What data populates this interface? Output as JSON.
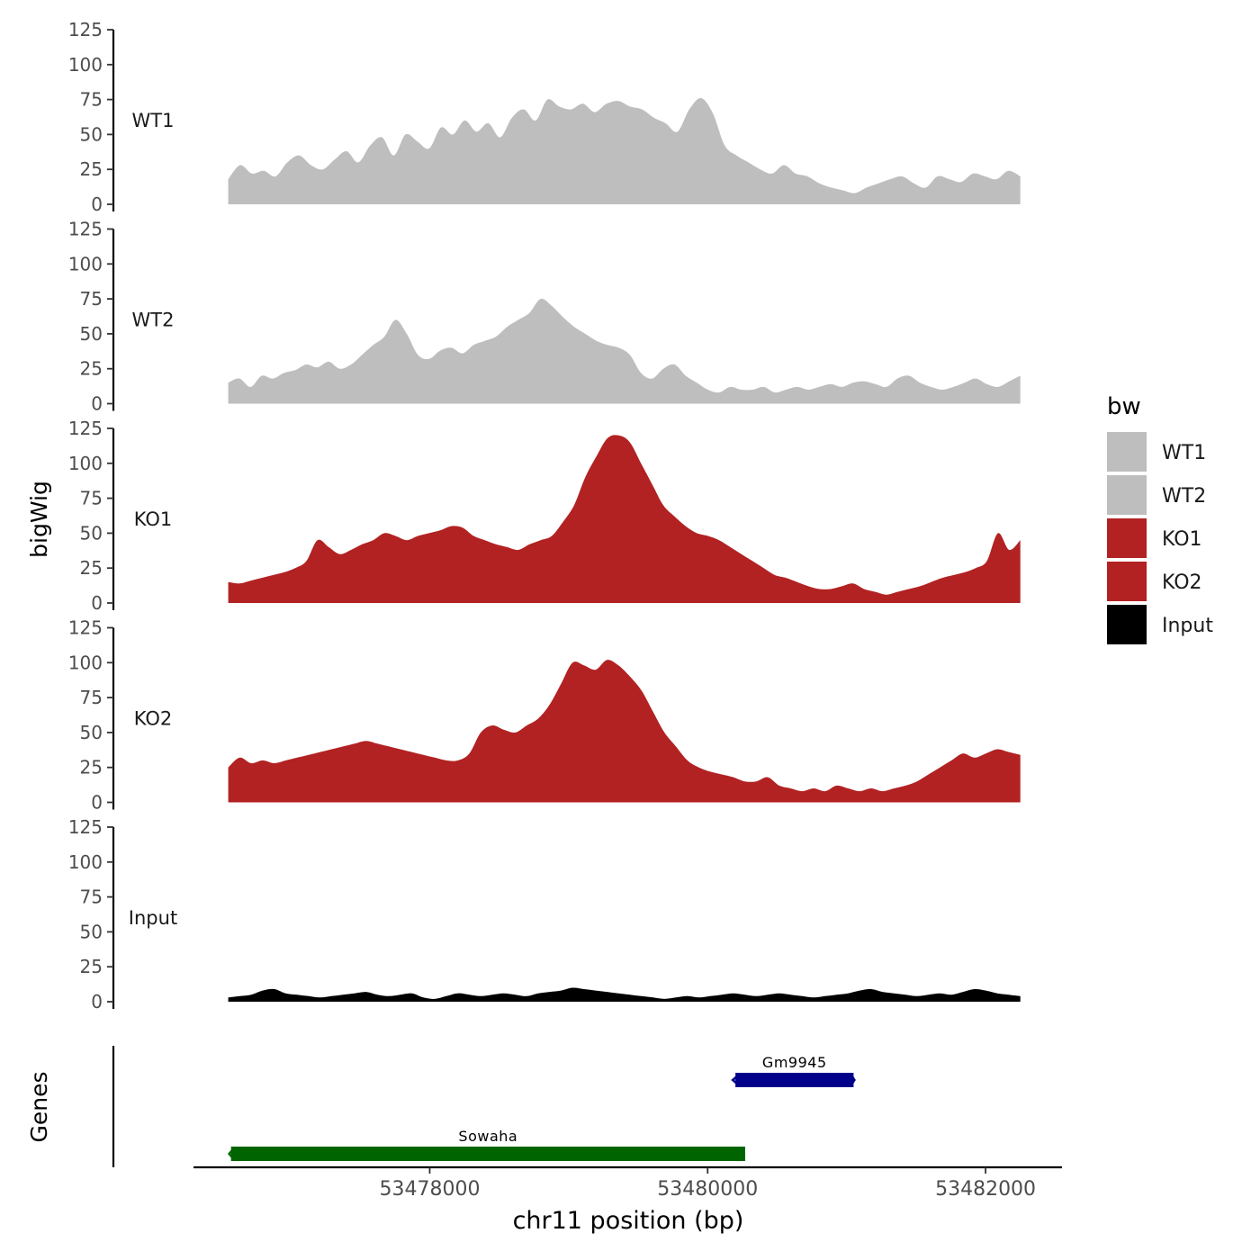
{
  "chart_data": {
    "type": "area",
    "title": "",
    "xlabel": "chr11 position (bp)",
    "ylabel": "bigWig",
    "genes_label": "Genes",
    "xlim": [
      53476300,
      53482550
    ],
    "region": [
      53476550,
      53482250
    ],
    "ylim": [
      0,
      125
    ],
    "y_ticks": [
      0,
      25,
      50,
      75,
      100,
      125
    ],
    "x_ticks": [
      53478000,
      53480000,
      53482000
    ],
    "legend": {
      "title": "bw",
      "position": "right",
      "entries": [
        {
          "label": "WT1",
          "color": "#bebebe"
        },
        {
          "label": "WT2",
          "color": "#bebebe"
        },
        {
          "label": "KO1",
          "color": "#b22222"
        },
        {
          "label": "KO2",
          "color": "#b22222"
        },
        {
          "label": "Input",
          "color": "#000000"
        }
      ]
    },
    "series": [
      {
        "name": "WT1",
        "color": "#bebebe",
        "values": [
          18,
          28,
          22,
          24,
          20,
          30,
          35,
          28,
          25,
          32,
          38,
          30,
          42,
          48,
          35,
          50,
          45,
          40,
          55,
          50,
          60,
          52,
          58,
          48,
          62,
          68,
          60,
          75,
          70,
          68,
          72,
          66,
          72,
          74,
          70,
          68,
          62,
          58,
          52,
          68,
          76,
          65,
          42,
          35,
          30,
          25,
          22,
          28,
          22,
          20,
          15,
          12,
          10,
          8,
          12,
          15,
          18,
          20,
          15,
          12,
          20,
          18,
          16,
          22,
          20,
          18,
          24,
          20
        ]
      },
      {
        "name": "WT2",
        "color": "#bebebe",
        "values": [
          15,
          18,
          12,
          20,
          18,
          22,
          24,
          28,
          26,
          30,
          25,
          28,
          35,
          42,
          48,
          60,
          50,
          35,
          32,
          38,
          40,
          36,
          42,
          45,
          48,
          55,
          60,
          65,
          75,
          70,
          62,
          55,
          50,
          45,
          42,
          40,
          35,
          22,
          18,
          25,
          28,
          20,
          15,
          10,
          8,
          12,
          10,
          10,
          12,
          8,
          10,
          12,
          10,
          12,
          14,
          12,
          15,
          16,
          14,
          12,
          18,
          20,
          15,
          12,
          10,
          12,
          15,
          18,
          14,
          12,
          16,
          20
        ]
      },
      {
        "name": "KO1",
        "color": "#b22222",
        "values": [
          15,
          14,
          16,
          18,
          20,
          22,
          25,
          30,
          45,
          40,
          35,
          38,
          42,
          45,
          50,
          48,
          45,
          48,
          50,
          52,
          55,
          54,
          48,
          45,
          42,
          40,
          38,
          42,
          45,
          48,
          58,
          70,
          90,
          105,
          118,
          120,
          115,
          100,
          85,
          70,
          62,
          55,
          50,
          48,
          45,
          40,
          35,
          30,
          25,
          20,
          18,
          15,
          12,
          10,
          10,
          12,
          14,
          10,
          8,
          6,
          8,
          10,
          12,
          15,
          18,
          20,
          22,
          25,
          30,
          50,
          38,
          45
        ]
      },
      {
        "name": "KO2",
        "color": "#b22222",
        "values": [
          25,
          32,
          28,
          30,
          28,
          30,
          32,
          34,
          36,
          38,
          40,
          42,
          44,
          42,
          40,
          38,
          36,
          34,
          32,
          30,
          30,
          35,
          50,
          55,
          52,
          50,
          55,
          60,
          70,
          85,
          100,
          98,
          95,
          102,
          98,
          90,
          80,
          65,
          50,
          40,
          30,
          25,
          22,
          20,
          18,
          15,
          15,
          18,
          12,
          10,
          8,
          10,
          8,
          12,
          10,
          8,
          10,
          8,
          10,
          12,
          15,
          20,
          25,
          30,
          35,
          32,
          35,
          38,
          36,
          34
        ]
      },
      {
        "name": "Input",
        "color": "#000000",
        "values": [
          3,
          4,
          5,
          8,
          9,
          6,
          5,
          4,
          3,
          4,
          5,
          6,
          7,
          5,
          4,
          5,
          6,
          3,
          2,
          4,
          6,
          5,
          4,
          5,
          6,
          5,
          4,
          6,
          7,
          8,
          10,
          9,
          8,
          7,
          6,
          5,
          4,
          3,
          2,
          3,
          4,
          3,
          4,
          5,
          6,
          5,
          4,
          5,
          6,
          5,
          4,
          3,
          4,
          5,
          6,
          8,
          9,
          7,
          6,
          5,
          4,
          5,
          6,
          5,
          7,
          9,
          8,
          6,
          5,
          4
        ]
      }
    ],
    "genes": [
      {
        "name": "Gene1",
        "label": "Gm9945",
        "start": 53480200,
        "end": 53481050,
        "color": "#00008b",
        "strand": "-",
        "row": 1
      },
      {
        "name": "Gene2",
        "label": "Sowaha",
        "start": 53476570,
        "end": 53480270,
        "color": "#006400",
        "strand": "+",
        "row": 2
      }
    ]
  }
}
